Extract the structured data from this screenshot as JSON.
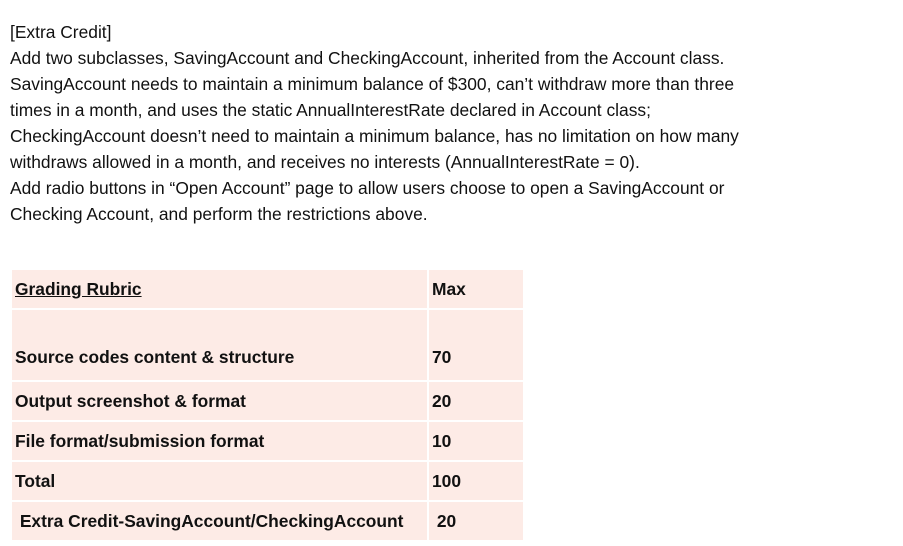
{
  "paragraph": {
    "lines": [
      "[Extra Credit]",
      "Add two subclasses, SavingAccount and CheckingAccount, inherited from the Account class.",
      "SavingAccount needs to maintain a minimum balance of $300, can’t withdraw more than three",
      "times in a month, and uses the static AnnualInterestRate declared in Account class;",
      "CheckingAccount doesn’t need to maintain a minimum balance, has no limitation on how many",
      "withdraws allowed in a month, and receives no interests (AnnualInterestRate = 0).",
      "Add radio buttons in “Open Account” page to allow users choose to open a SavingAccount or",
      "Checking Account, and perform the restrictions above."
    ]
  },
  "rubric": {
    "header": {
      "criterion": "Grading Rubric",
      "max": "Max"
    },
    "rows": [
      {
        "criterion": "Source codes content & structure",
        "max": "70"
      },
      {
        "criterion": "Output screenshot & format",
        "max": "20"
      },
      {
        "criterion": "File format/submission format",
        "max": "10"
      },
      {
        "criterion": "Total",
        "max": "100"
      },
      {
        "criterion": " Extra Credit-SavingAccount/CheckingAccount",
        "max": " 20"
      }
    ],
    "fill_color": "#fdebe6"
  }
}
